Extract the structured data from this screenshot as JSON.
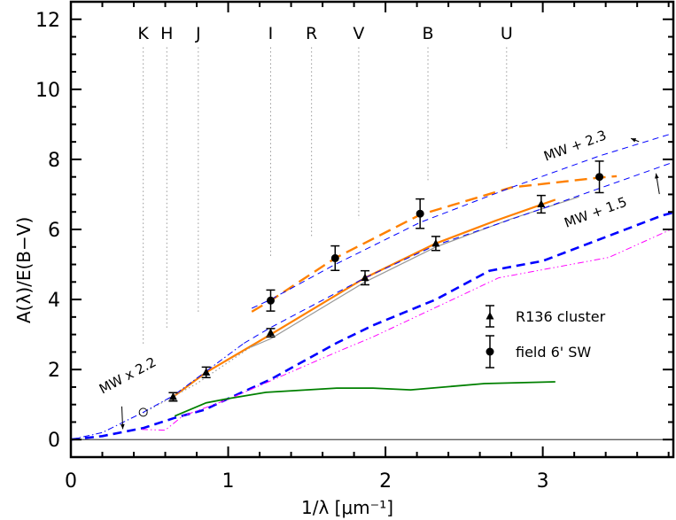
{
  "chart_data": {
    "type": "line",
    "xlabel": "1/λ [μm⁻¹]",
    "ylabel": "A(λ)/E(B−V)",
    "xlim": [
      0,
      3.83
    ],
    "ylim": [
      -0.5,
      12.5
    ],
    "x_ticks": [
      0,
      1,
      2,
      3
    ],
    "y_ticks": [
      0,
      2,
      4,
      6,
      8,
      10,
      12
    ],
    "grid": false,
    "legend_position": "lower-right",
    "bands": [
      {
        "label": "K",
        "x": 0.46,
        "y_bottom": 2.7
      },
      {
        "label": "H",
        "x": 0.61,
        "y_bottom": 3.15
      },
      {
        "label": "J",
        "x": 0.81,
        "y_bottom": 3.6
      },
      {
        "label": "I",
        "x": 1.27,
        "y_bottom": 5.2
      },
      {
        "label": "R",
        "x": 1.53,
        "y_bottom": 5.75
      },
      {
        "label": "V",
        "x": 1.83,
        "y_bottom": 6.3
      },
      {
        "label": "B",
        "x": 2.27,
        "y_bottom": 7.4
      },
      {
        "label": "U",
        "x": 2.77,
        "y_bottom": 8.3
      }
    ],
    "points": [
      {
        "name": "R136 cluster",
        "marker": "triangle",
        "data": [
          {
            "x": 0.65,
            "y": 1.22,
            "err": 0.12
          },
          {
            "x": 0.86,
            "y": 1.92,
            "err": 0.15
          },
          {
            "x": 1.27,
            "y": 3.05,
            "err": 0.12
          },
          {
            "x": 1.87,
            "y": 4.62,
            "err": 0.2
          },
          {
            "x": 2.32,
            "y": 5.6,
            "err": 0.2
          },
          {
            "x": 2.99,
            "y": 6.72,
            "err": 0.25
          }
        ]
      },
      {
        "name": "field 6' SW",
        "marker": "circle",
        "data": [
          {
            "x": 1.27,
            "y": 3.97,
            "err": 0.3
          },
          {
            "x": 1.68,
            "y": 5.18,
            "err": 0.35
          },
          {
            "x": 2.22,
            "y": 6.45,
            "err": 0.42
          },
          {
            "x": 3.36,
            "y": 7.5,
            "err": 0.45
          }
        ]
      }
    ],
    "open_marker": {
      "x": 0.46,
      "y": 0.78
    },
    "series": [
      {
        "color": "#ff8000",
        "style": "solid",
        "width": 2.2,
        "x": [
          0.65,
          0.86,
          1.27,
          1.87,
          2.32,
          2.7,
          3.08
        ],
        "y": [
          1.22,
          1.92,
          3.0,
          4.62,
          5.6,
          6.25,
          6.85
        ]
      },
      {
        "color": "#999999",
        "style": "dotted",
        "width": 1.2,
        "x": [
          0.46,
          0.8,
          1.14
        ],
        "y": [
          0.76,
          1.6,
          2.63
        ]
      },
      {
        "color": "#999999",
        "style": "solid",
        "width": 1.2,
        "x": [
          1.14,
          1.27,
          1.87,
          2.32,
          2.8,
          3.23
        ],
        "y": [
          2.63,
          2.88,
          4.5,
          5.5,
          6.3,
          6.93
        ]
      },
      {
        "color": "#ff8000",
        "style": "longdash",
        "width": 2.4,
        "x": [
          1.15,
          1.27,
          1.68,
          2.22,
          2.8,
          3.36,
          3.47
        ],
        "y": [
          3.65,
          3.97,
          5.18,
          6.42,
          7.2,
          7.48,
          7.52
        ]
      },
      {
        "color": "#0000ff",
        "style": "dash",
        "width": 1,
        "x": [
          1.15,
          1.27,
          1.68,
          2.22,
          2.8,
          3.36,
          3.83
        ],
        "y": [
          3.75,
          4.0,
          5.0,
          6.2,
          7.2,
          8.1,
          8.75
        ]
      },
      {
        "color": "#0000ff",
        "style": "dashdot",
        "width": 1,
        "x": [
          0,
          0.2,
          0.46,
          0.65,
          0.86,
          1.1
        ],
        "y": [
          0,
          0.2,
          0.78,
          1.25,
          1.95,
          2.75
        ]
      },
      {
        "color": "#0000ff",
        "style": "dash",
        "width": 1,
        "x": [
          1.1,
          1.27,
          1.87,
          2.32,
          3.0,
          3.83
        ],
        "y": [
          2.75,
          3.2,
          4.62,
          5.55,
          6.6,
          7.92
        ]
      },
      {
        "color": "#0000ff",
        "style": "thickdash",
        "width": 2.6,
        "x": [
          0,
          0.2,
          0.46,
          0.66,
          0.85,
          1.0,
          1.27,
          1.69,
          1.92,
          2.32,
          2.66,
          3.0,
          3.76,
          3.83
        ],
        "y": [
          0,
          0.1,
          0.33,
          0.62,
          0.85,
          1.17,
          1.72,
          2.76,
          3.26,
          4.0,
          4.82,
          5.1,
          6.4,
          6.48
        ]
      },
      {
        "color": "#ff00ff",
        "style": "dashdotdot",
        "width": 1,
        "x": [
          0.45,
          0.6,
          0.71,
          1.0,
          1.69,
          1.92,
          2.72,
          3.42,
          3.83
        ],
        "y": [
          0.29,
          0.27,
          0.67,
          1.15,
          2.5,
          2.93,
          4.62,
          5.2,
          6.03
        ]
      },
      {
        "color": "#008000",
        "style": "solid",
        "width": 1.8,
        "x": [
          0.66,
          0.86,
          1.0,
          1.24,
          1.69,
          1.92,
          2.16,
          2.63,
          3.08
        ],
        "y": [
          0.67,
          1.05,
          1.17,
          1.35,
          1.47,
          1.47,
          1.42,
          1.6,
          1.65
        ]
      },
      {
        "color": "#000000",
        "style": "solid",
        "width": 0.8,
        "x": [
          0,
          3.83
        ],
        "y": [
          0,
          0
        ]
      }
    ],
    "annotations": [
      {
        "text": "MW x 2.2",
        "x": 0.2,
        "y": 1.3,
        "arrow_to": [
          0.33,
          0.3
        ]
      },
      {
        "text": "MW + 2.3",
        "x": 3.02,
        "y": 7.95,
        "arrow_to": [
          3.56,
          8.6
        ]
      },
      {
        "text": "MW + 1.5",
        "x": 3.15,
        "y": 6.05,
        "arrow_to": [
          3.72,
          7.6
        ]
      }
    ]
  }
}
